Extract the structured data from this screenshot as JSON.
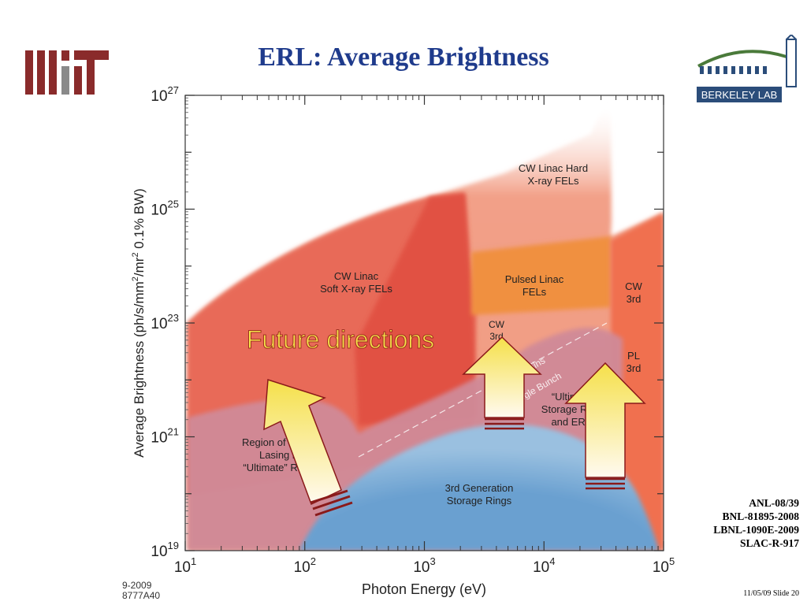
{
  "slide": {
    "title": "ERL: Average Brightness",
    "references": [
      "ANL-08/39",
      "BNL-81895-2008",
      "LBNL-1090E-2009",
      "SLAC-R-917"
    ],
    "slide_number": "11/05/09 Slide 20"
  },
  "logos": {
    "left": "MIT",
    "right": "BERKELEY LAB"
  },
  "chart_data": {
    "type": "area",
    "xlabel": "Photon Energy  (eV)",
    "ylabel_parts": [
      "Average Brightness  (ph/s/mm",
      "2",
      "/mr",
      "2",
      " 0.1% BW)"
    ],
    "x_scale": "log",
    "y_scale": "log",
    "xlim": [
      10,
      100000
    ],
    "ylim": [
      1e+19,
      1e+27
    ],
    "x_ticks": [
      {
        "base": "10",
        "exp": "1"
      },
      {
        "base": "10",
        "exp": "2"
      },
      {
        "base": "10",
        "exp": "3"
      },
      {
        "base": "10",
        "exp": "4"
      },
      {
        "base": "10",
        "exp": "5"
      }
    ],
    "y_ticks": [
      {
        "base": "10",
        "exp": "19"
      },
      {
        "base": "10",
        "exp": "21"
      },
      {
        "base": "10",
        "exp": "23"
      },
      {
        "base": "10",
        "exp": "25"
      },
      {
        "base": "10",
        "exp": "27"
      }
    ],
    "figure_code": [
      "9-2009",
      "8777A40"
    ],
    "regions": [
      {
        "name": "CW Linac Hard X-ray FELs",
        "color": "#f0a088"
      },
      {
        "name": "CW Linac Soft X-ray FELs",
        "color": "#e86a58"
      },
      {
        "name": "Pulsed Linac FELs",
        "color": "#f09040"
      },
      {
        "name": "CW 3rd",
        "color": "#f07050"
      },
      {
        "name": "3rd Generation Storage Rings",
        "color": "#6aa0d0"
      },
      {
        "name": "Ultimate Storage Rings and ERLs",
        "color": "#d08a98"
      }
    ],
    "labels": {
      "hard_fel": [
        "CW Linac Hard",
        "X-ray FELs"
      ],
      "soft_fel": [
        "CW Linac",
        "Soft X-ray FELs"
      ],
      "pulsed_fel": [
        "Pulsed Linac",
        "FELs"
      ],
      "cw3rd_right": [
        "CW",
        "3rd"
      ],
      "pl3rd": [
        "PL",
        "3rd"
      ],
      "cw3rd_mid": [
        "CW",
        "3rd"
      ],
      "ultimate": [
        "“Ultimate”",
        "Storage Rings",
        "and ERLs"
      ],
      "partial": [
        "Region of Partial",
        "Lasing in",
        "“Ultimate” Rings"
      ],
      "third_gen": [
        "3rd Generation",
        "Storage Rings"
      ],
      "bunch_trains": "Bunch Trains",
      "single_bunch": "Single Bunch",
      "future": "Future directions"
    }
  }
}
